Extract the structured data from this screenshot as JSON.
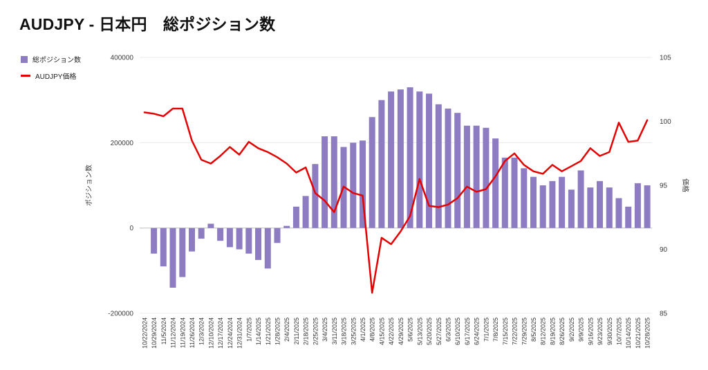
{
  "chart_data": {
    "type": "bar",
    "title": "AUDJPY - 日本円　総ポジション数",
    "legend_position": "top-left",
    "grid": true,
    "categories": [
      "10/22/2024",
      "10/29/2024",
      "11/5/2024",
      "11/12/2024",
      "11/19/2024",
      "11/26/2024",
      "12/3/2024",
      "12/10/2024",
      "12/17/2024",
      "12/24/2024",
      "12/31/2024",
      "1/7/2025",
      "1/14/2025",
      "1/21/2025",
      "1/28/2025",
      "2/4/2025",
      "2/11/2025",
      "2/18/2025",
      "2/25/2025",
      "3/4/2025",
      "3/11/2025",
      "3/18/2025",
      "3/25/2025",
      "4/1/2025",
      "4/8/2025",
      "4/15/2025",
      "4/22/2025",
      "4/29/2025",
      "5/6/2025",
      "5/13/2025",
      "5/20/2025",
      "5/27/2025",
      "6/3/2025",
      "6/10/2025",
      "6/17/2025",
      "6/24/2025",
      "7/1/2025",
      "7/8/2025",
      "7/15/2025",
      "7/22/2025",
      "7/29/2025",
      "8/5/2025",
      "8/12/2025",
      "8/19/2025",
      "8/26/2025",
      "9/2/2025",
      "9/9/2025",
      "9/16/2025",
      "9/23/2025",
      "9/30/2025",
      "10/7/2025",
      "10/14/2025",
      "10/21/2025",
      "10/28/2025"
    ],
    "series": [
      {
        "name": "総ポジション数",
        "type": "bar",
        "axis": "left",
        "color": "#8e7cc3",
        "values": [
          0,
          -60000,
          -90000,
          -140000,
          -115000,
          -55000,
          -25000,
          10000,
          -30000,
          -45000,
          -50000,
          -60000,
          -75000,
          -95000,
          -35000,
          5000,
          50000,
          75000,
          150000,
          215000,
          215000,
          190000,
          200000,
          205000,
          260000,
          300000,
          320000,
          325000,
          330000,
          320000,
          315000,
          290000,
          280000,
          270000,
          240000,
          240000,
          235000,
          210000,
          165000,
          165000,
          140000,
          120000,
          100000,
          110000,
          120000,
          90000,
          135000,
          95000,
          110000,
          95000,
          70000,
          50000,
          105000,
          100000
        ]
      },
      {
        "name": "AUDJPY価格",
        "type": "line",
        "axis": "right",
        "color": "#e50000",
        "values": [
          100.7,
          100.6,
          100.4,
          101.0,
          101.0,
          98.5,
          97.0,
          96.7,
          97.3,
          98.0,
          97.4,
          98.4,
          97.9,
          97.6,
          97.2,
          96.7,
          96.0,
          96.4,
          94.4,
          93.8,
          92.9,
          94.9,
          94.4,
          94.2,
          86.6,
          90.9,
          90.4,
          91.4,
          92.6,
          95.5,
          93.4,
          93.3,
          93.5,
          94.0,
          94.9,
          94.5,
          94.7,
          95.7,
          96.9,
          97.5,
          96.6,
          96.1,
          95.9,
          96.6,
          96.1,
          96.5,
          96.9,
          97.9,
          97.3,
          97.6,
          99.9,
          98.4,
          98.5,
          100.1
        ]
      }
    ],
    "left_axis": {
      "label": "ポジション数",
      "ticks": [
        400000,
        200000,
        0,
        -200000
      ],
      "range": [
        -200000,
        400000
      ]
    },
    "right_axis": {
      "label": "価格",
      "ticks": [
        105,
        100,
        95,
        90,
        85
      ],
      "range": [
        85,
        105
      ]
    }
  }
}
